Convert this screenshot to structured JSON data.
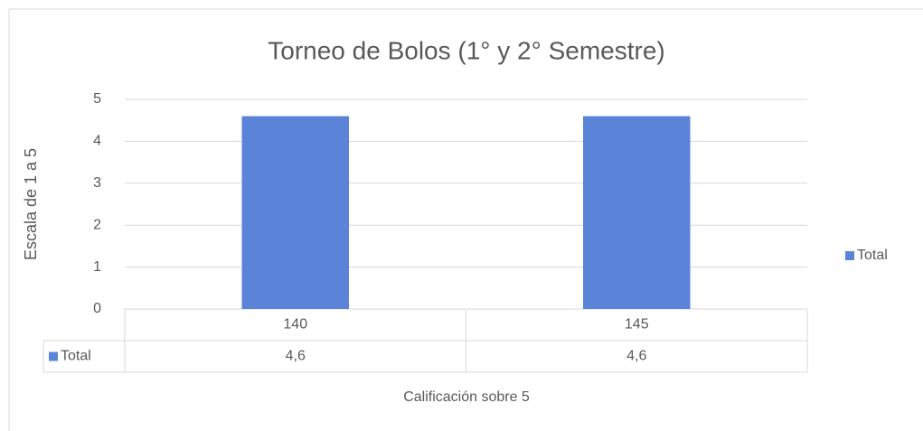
{
  "chart_data": {
    "type": "bar",
    "title": "Torneo de Bolos (1° y 2° Semestre)",
    "x_label": "Calificación sobre 5",
    "y_label": "Escala de 1 a 5",
    "categories": [
      "140",
      "145"
    ],
    "series": [
      {
        "name": "Total",
        "color": "#5b84d9",
        "values": [
          4.6,
          4.6
        ],
        "value_labels": [
          "4,6",
          "4,6"
        ]
      }
    ],
    "ylim": [
      0,
      5
    ],
    "yticks": [
      0,
      1,
      2,
      3,
      4,
      5
    ],
    "grid": true,
    "legend": "right"
  }
}
